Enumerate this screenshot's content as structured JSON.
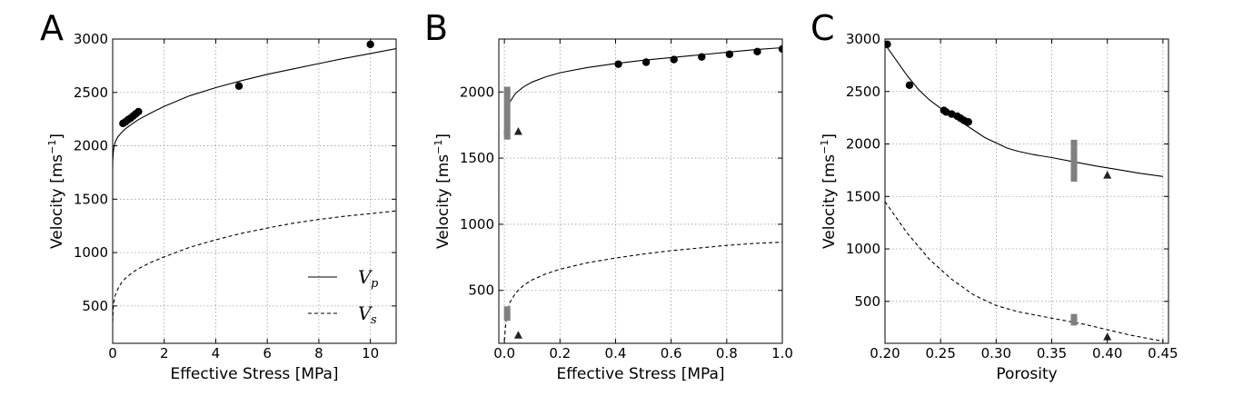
{
  "chart_data": [
    {
      "type": "line",
      "panel_label": "A",
      "xlabel": "Effective Stress [MPa]",
      "ylabel_main": "Velocity [ms",
      "ylabel_exp": "−1",
      "ylabel_end": "]",
      "xlim": [
        0,
        11
      ],
      "ylim": [
        150,
        3000
      ],
      "xticks": [
        0,
        2,
        4,
        6,
        8,
        10
      ],
      "yticks": [
        500,
        1000,
        1500,
        2000,
        2500,
        3000
      ],
      "grid": true,
      "legend": {
        "position": "bottom-right",
        "entries": [
          {
            "label": "V",
            "sub": "p",
            "style": "solid"
          },
          {
            "label": "V",
            "sub": "s",
            "style": "dashed"
          }
        ]
      },
      "series": [
        {
          "name": "Vp",
          "style": "solid",
          "x": [
            0.0,
            0.005,
            0.02,
            0.05,
            0.1,
            0.2,
            0.35,
            0.5,
            0.75,
            1,
            1.5,
            2,
            3,
            4,
            5,
            6,
            7,
            8,
            9,
            10,
            11
          ],
          "y": [
            1790,
            1860,
            1930,
            1990,
            2035,
            2085,
            2125,
            2160,
            2205,
            2245,
            2310,
            2370,
            2470,
            2545,
            2610,
            2670,
            2720,
            2770,
            2820,
            2865,
            2910
          ]
        },
        {
          "name": "Vs",
          "style": "dashed",
          "x": [
            0.0,
            0.02,
            0.05,
            0.1,
            0.2,
            0.35,
            0.5,
            0.75,
            1,
            1.5,
            2,
            3,
            4,
            5,
            6,
            7,
            8,
            9,
            10,
            11
          ],
          "y": [
            350,
            480,
            540,
            600,
            660,
            720,
            760,
            810,
            850,
            910,
            960,
            1050,
            1120,
            1180,
            1230,
            1275,
            1310,
            1340,
            1365,
            1390
          ]
        },
        {
          "name": "measured",
          "style": "marker-circle",
          "x": [
            0.4,
            0.5,
            0.6,
            0.7,
            0.8,
            0.9,
            1.0,
            4.9,
            10.0
          ],
          "y": [
            2210,
            2225,
            2245,
            2260,
            2280,
            2300,
            2320,
            2560,
            2950
          ]
        }
      ]
    },
    {
      "type": "line",
      "panel_label": "B",
      "xlabel": "Effective Stress [MPa]",
      "ylabel_main": "Velocity [ms",
      "ylabel_exp": "−1",
      "ylabel_end": "]",
      "xlim": [
        -0.02,
        1.0
      ],
      "ylim": [
        100,
        2400
      ],
      "xticks": [
        0.0,
        0.2,
        0.4,
        0.6,
        0.8,
        1.0
      ],
      "yticks": [
        500,
        1000,
        1500,
        2000
      ],
      "grid": true,
      "series": [
        {
          "name": "Vp",
          "style": "solid",
          "x": [
            0.0,
            0.005,
            0.01,
            0.02,
            0.04,
            0.07,
            0.1,
            0.15,
            0.2,
            0.3,
            0.4,
            0.5,
            0.6,
            0.7,
            0.8,
            0.9,
            1.0
          ],
          "y": [
            1680,
            1800,
            1860,
            1925,
            1990,
            2040,
            2075,
            2115,
            2145,
            2185,
            2215,
            2240,
            2260,
            2280,
            2300,
            2320,
            2335
          ]
        },
        {
          "name": "Vs",
          "style": "dashed",
          "x": [
            0.0,
            0.005,
            0.01,
            0.02,
            0.04,
            0.07,
            0.1,
            0.15,
            0.2,
            0.3,
            0.4,
            0.5,
            0.6,
            0.7,
            0.8,
            0.9,
            1.0
          ],
          "y": [
            120,
            250,
            330,
            410,
            480,
            540,
            580,
            625,
            660,
            710,
            745,
            775,
            800,
            820,
            840,
            855,
            865
          ]
        },
        {
          "name": "measured",
          "style": "marker-circle",
          "x": [
            0.41,
            0.51,
            0.61,
            0.71,
            0.81,
            0.91,
            1.0
          ],
          "y": [
            2210,
            2225,
            2245,
            2265,
            2285,
            2305,
            2325
          ]
        },
        {
          "name": "triangles",
          "style": "marker-triangle",
          "x": [
            0.05,
            0.05
          ],
          "y": [
            1700,
            160
          ]
        },
        {
          "name": "ranges",
          "style": "range-bar",
          "x": [
            0.01,
            0.01
          ],
          "y_low": [
            1640,
            270
          ],
          "y_high": [
            2040,
            380
          ]
        }
      ]
    },
    {
      "type": "line",
      "panel_label": "C",
      "xlabel": "Porosity",
      "ylabel_main": "Velocity [ms",
      "ylabel_exp": "−1",
      "ylabel_end": "]",
      "xlim": [
        0.2,
        0.455
      ],
      "ylim": [
        100,
        3000
      ],
      "xticks": [
        0.2,
        0.25,
        0.3,
        0.35,
        0.4,
        0.45
      ],
      "yticks": [
        500,
        1000,
        1500,
        2000,
        2500,
        3000
      ],
      "grid": true,
      "series": [
        {
          "name": "Vp",
          "style": "solid",
          "x": [
            0.2,
            0.21,
            0.22,
            0.23,
            0.24,
            0.25,
            0.26,
            0.27,
            0.28,
            0.29,
            0.3,
            0.31,
            0.32,
            0.333,
            0.35,
            0.37,
            0.39,
            0.41,
            0.43,
            0.45
          ],
          "y": [
            2950,
            2800,
            2650,
            2520,
            2420,
            2340,
            2270,
            2200,
            2130,
            2060,
            2010,
            1960,
            1930,
            1900,
            1870,
            1830,
            1790,
            1755,
            1720,
            1690
          ]
        },
        {
          "name": "Vs",
          "style": "dashed",
          "x": [
            0.2,
            0.22,
            0.24,
            0.26,
            0.28,
            0.3,
            0.32,
            0.34,
            0.36,
            0.38,
            0.4,
            0.42,
            0.44,
            0.45
          ],
          "y": [
            1450,
            1150,
            900,
            710,
            560,
            460,
            400,
            360,
            320,
            280,
            230,
            180,
            140,
            120
          ]
        },
        {
          "name": "measured",
          "style": "marker-circle",
          "x": [
            0.202,
            0.222,
            0.253,
            0.255,
            0.26,
            0.265,
            0.268,
            0.271,
            0.275
          ],
          "y": [
            2950,
            2560,
            2320,
            2305,
            2285,
            2265,
            2245,
            2225,
            2210
          ]
        },
        {
          "name": "triangles",
          "style": "marker-triangle",
          "x": [
            0.4,
            0.4
          ],
          "y": [
            1700,
            160
          ]
        },
        {
          "name": "ranges",
          "style": "range-bar",
          "x": [
            0.37,
            0.37
          ],
          "y_low": [
            1640,
            270
          ],
          "y_high": [
            2040,
            380
          ]
        }
      ]
    }
  ]
}
